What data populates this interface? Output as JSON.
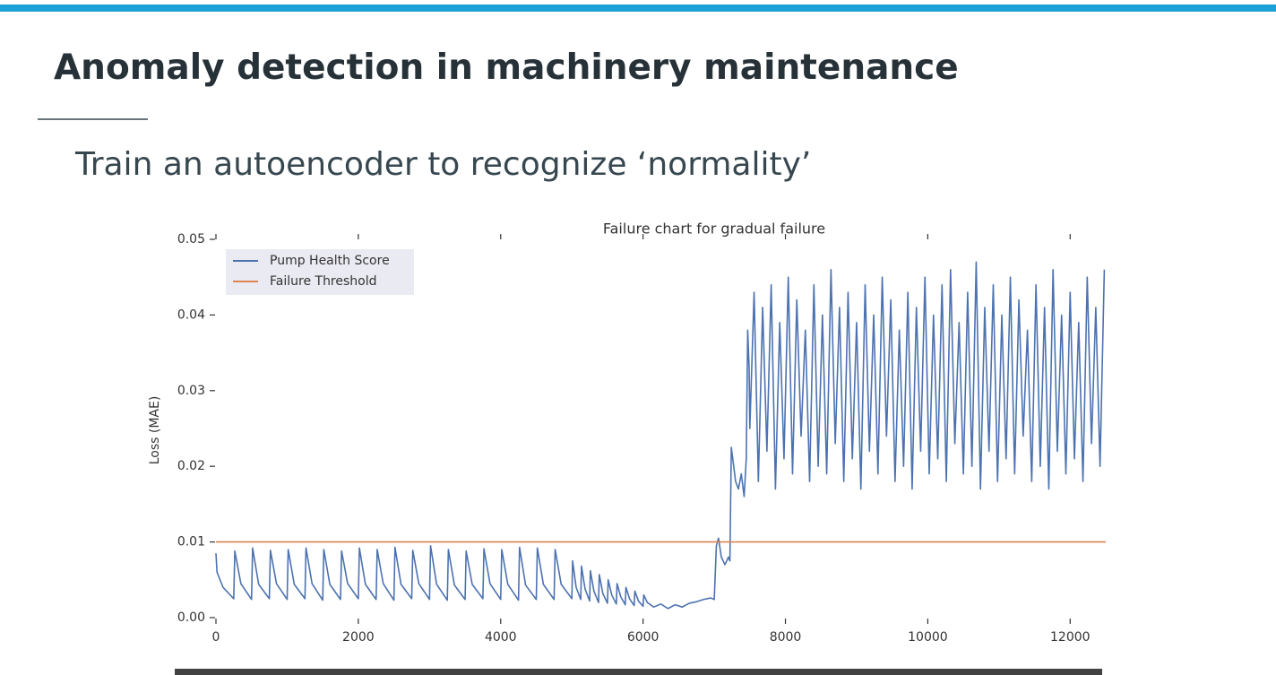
{
  "slide": {
    "title": "Anomaly detection in machinery maintenance",
    "subtitle": "Train an autoencoder to recognize ‘normality’"
  },
  "chart_data": {
    "type": "line",
    "title": "Failure chart for gradual failure",
    "y_label": "Loss (MAE)",
    "xlim": [
      0,
      12500
    ],
    "xticks": [
      0,
      2000,
      4000,
      6000,
      8000,
      10000,
      12000
    ],
    "ylim": [
      0,
      0.05
    ],
    "yticks": [
      {
        "value": 0,
        "label": "0.00"
      },
      0.01,
      0.02,
      0.03,
      0.04,
      0.05
    ],
    "grid": false,
    "legend": "upper left",
    "series": [
      {
        "name": "Pump Health Score",
        "color": "#4c72b0",
        "x": [
          0,
          15,
          100,
          250,
          265,
          350,
          500,
          515,
          600,
          750,
          765,
          850,
          1000,
          1015,
          1100,
          1250,
          1265,
          1350,
          1500,
          1515,
          1600,
          1750,
          1765,
          1850,
          2000,
          2015,
          2100,
          2250,
          2265,
          2350,
          2500,
          2515,
          2600,
          2750,
          2765,
          2850,
          3000,
          3015,
          3100,
          3250,
          3265,
          3350,
          3500,
          3515,
          3600,
          3750,
          3765,
          3850,
          4000,
          4015,
          4100,
          4250,
          4265,
          4350,
          4500,
          4515,
          4600,
          4750,
          4765,
          4850,
          5000,
          5010,
          5060,
          5125,
          5135,
          5185,
          5250,
          5260,
          5310,
          5375,
          5385,
          5435,
          5500,
          5510,
          5560,
          5625,
          5635,
          5685,
          5750,
          5760,
          5810,
          5875,
          5885,
          5935,
          6000,
          6010,
          6060,
          6150,
          6250,
          6350,
          6450,
          6550,
          6650,
          6750,
          6850,
          6950,
          7000,
          7030,
          7060,
          7100,
          7150,
          7200,
          7220,
          7240,
          7260,
          7300,
          7340,
          7380,
          7420,
          7450,
          7470,
          7490,
          7500,
          7560,
          7620,
          7680,
          7740,
          7800,
          7860,
          7920,
          7980,
          8040,
          8100,
          8160,
          8220,
          8280,
          8340,
          8400,
          8460,
          8520,
          8580,
          8640,
          8700,
          8760,
          8820,
          8880,
          8940,
          9000,
          9060,
          9120,
          9180,
          9240,
          9300,
          9360,
          9420,
          9480,
          9540,
          9600,
          9660,
          9720,
          9780,
          9840,
          9900,
          9960,
          10020,
          10080,
          10140,
          10200,
          10260,
          10320,
          10380,
          10440,
          10500,
          10560,
          10620,
          10680,
          10740,
          10800,
          10860,
          10920,
          10980,
          11040,
          11100,
          11160,
          11220,
          11280,
          11340,
          11400,
          11460,
          11520,
          11580,
          11640,
          11700,
          11760,
          11820,
          11880,
          11940,
          12000,
          12060,
          12120,
          12180,
          12240,
          12300,
          12360,
          12420,
          12480
        ],
        "values": [
          0.0085,
          0.006,
          0.004,
          0.0025,
          0.0088,
          0.0045,
          0.0024,
          0.0092,
          0.0044,
          0.0025,
          0.0089,
          0.0045,
          0.0024,
          0.009,
          0.0044,
          0.0025,
          0.0092,
          0.0045,
          0.0023,
          0.009,
          0.0044,
          0.0024,
          0.0088,
          0.0045,
          0.0025,
          0.0092,
          0.0044,
          0.0024,
          0.009,
          0.0045,
          0.0023,
          0.0093,
          0.0044,
          0.0025,
          0.0089,
          0.0045,
          0.0024,
          0.0095,
          0.0044,
          0.0023,
          0.009,
          0.0043,
          0.0024,
          0.0088,
          0.0044,
          0.0025,
          0.0091,
          0.0045,
          0.0024,
          0.009,
          0.0044,
          0.0023,
          0.0093,
          0.0043,
          0.0024,
          0.0092,
          0.0044,
          0.0024,
          0.009,
          0.0044,
          0.0025,
          0.0075,
          0.004,
          0.0024,
          0.0068,
          0.0038,
          0.0022,
          0.0062,
          0.0035,
          0.002,
          0.0057,
          0.0032,
          0.0019,
          0.005,
          0.003,
          0.0018,
          0.0045,
          0.0028,
          0.0017,
          0.004,
          0.0025,
          0.0016,
          0.0035,
          0.0022,
          0.0015,
          0.003,
          0.002,
          0.0014,
          0.0018,
          0.0012,
          0.0017,
          0.0014,
          0.0019,
          0.0021,
          0.0024,
          0.0026,
          0.0024,
          0.0095,
          0.0105,
          0.008,
          0.007,
          0.008,
          0.0075,
          0.0225,
          0.021,
          0.018,
          0.017,
          0.019,
          0.016,
          0.021,
          0.038,
          0.033,
          0.025,
          0.043,
          0.018,
          0.041,
          0.022,
          0.044,
          0.017,
          0.039,
          0.021,
          0.045,
          0.019,
          0.042,
          0.024,
          0.038,
          0.018,
          0.044,
          0.02,
          0.04,
          0.019,
          0.046,
          0.023,
          0.041,
          0.018,
          0.043,
          0.021,
          0.039,
          0.017,
          0.044,
          0.022,
          0.04,
          0.019,
          0.045,
          0.024,
          0.042,
          0.018,
          0.038,
          0.02,
          0.043,
          0.017,
          0.041,
          0.022,
          0.045,
          0.019,
          0.04,
          0.021,
          0.044,
          0.018,
          0.046,
          0.023,
          0.039,
          0.019,
          0.043,
          0.02,
          0.047,
          0.017,
          0.041,
          0.022,
          0.044,
          0.018,
          0.04,
          0.021,
          0.045,
          0.019,
          0.042,
          0.024,
          0.038,
          0.018,
          0.044,
          0.02,
          0.041,
          0.017,
          0.046,
          0.022,
          0.04,
          0.019,
          0.043,
          0.021,
          0.039,
          0.018,
          0.045,
          0.023,
          0.041,
          0.02,
          0.046
        ]
      },
      {
        "name": "Failure Threshold",
        "color": "#dd8452",
        "x": [
          0,
          12500
        ],
        "values": [
          0.01,
          0.01
        ]
      }
    ]
  }
}
